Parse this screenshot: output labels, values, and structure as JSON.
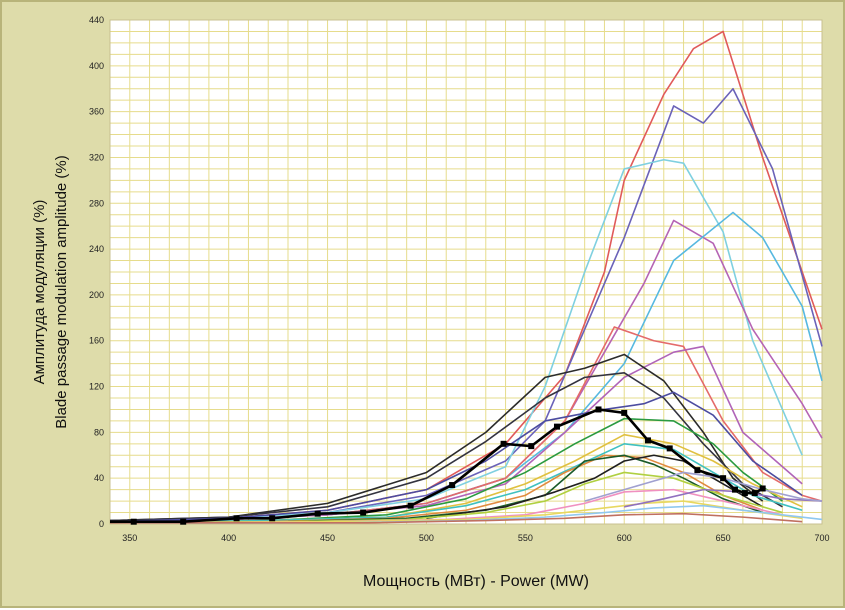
{
  "chart_data": {
    "type": "line",
    "xlabel": "Мощность (МВт) - Power (MW)",
    "ylabel_ru": "Амплитуда модуляции (%)",
    "ylabel_en": "Blade passage modulation amplitude (%)",
    "xlim": [
      340,
      700
    ],
    "ylim": [
      0,
      440
    ],
    "x_ticks": [
      350,
      400,
      450,
      500,
      550,
      600,
      650,
      700
    ],
    "y_ticks": [
      0,
      40,
      80,
      120,
      160,
      200,
      240,
      280,
      320,
      360,
      400,
      440
    ],
    "grid": true,
    "background_color": "#dedcaa",
    "plot_background": "#ffffff",
    "grid_color": "#e6dc8c",
    "highlight_series_color": "#000000",
    "series": [
      {
        "color": "#e05a5a",
        "x": [
          340,
          400,
          450,
          500,
          540,
          570,
          590,
          600,
          620,
          635,
          650,
          670,
          700
        ],
        "y": [
          3,
          5,
          12,
          30,
          70,
          130,
          220,
          300,
          375,
          415,
          430,
          320,
          170
        ]
      },
      {
        "color": "#6a62b8",
        "x": [
          340,
          400,
          450,
          500,
          540,
          560,
          580,
          600,
          625,
          640,
          655,
          675,
          700
        ],
        "y": [
          3,
          5,
          10,
          25,
          55,
          90,
          170,
          250,
          365,
          350,
          380,
          310,
          155
        ]
      },
      {
        "color": "#7fd0e0",
        "x": [
          340,
          400,
          450,
          500,
          540,
          560,
          580,
          600,
          620,
          630,
          650,
          665,
          690
        ],
        "y": [
          3,
          5,
          10,
          22,
          50,
          120,
          220,
          310,
          318,
          315,
          255,
          160,
          60
        ]
      },
      {
        "color": "#b564b4",
        "x": [
          340,
          400,
          450,
          500,
          540,
          570,
          590,
          610,
          625,
          645,
          665,
          690,
          700
        ],
        "y": [
          2,
          4,
          8,
          18,
          40,
          90,
          150,
          210,
          265,
          245,
          170,
          105,
          75
        ]
      },
      {
        "color": "#56b8e0",
        "x": [
          340,
          400,
          450,
          500,
          540,
          570,
          600,
          625,
          655,
          670,
          690,
          700
        ],
        "y": [
          2,
          4,
          8,
          18,
          40,
          80,
          140,
          230,
          272,
          250,
          190,
          125
        ]
      },
      {
        "color": "#e46a6a",
        "x": [
          340,
          400,
          450,
          500,
          540,
          570,
          595,
          615,
          630,
          650,
          670,
          690,
          700
        ],
        "y": [
          2,
          4,
          8,
          18,
          40,
          90,
          172,
          160,
          155,
          90,
          45,
          25,
          20
        ]
      },
      {
        "color": "#b064b8",
        "x": [
          340,
          400,
          450,
          500,
          540,
          570,
          600,
          625,
          640,
          660,
          690
        ],
        "y": [
          2,
          4,
          8,
          16,
          35,
          80,
          128,
          150,
          155,
          80,
          35
        ]
      },
      {
        "color": "#2b2b2b",
        "x": [
          340,
          400,
          450,
          500,
          530,
          560,
          580,
          600,
          620,
          640,
          655,
          670
        ],
        "y": [
          3,
          6,
          18,
          45,
          80,
          128,
          136,
          148,
          125,
          80,
          40,
          20
        ]
      },
      {
        "color": "#333340",
        "x": [
          340,
          400,
          450,
          500,
          530,
          560,
          580,
          600,
          620,
          640,
          660,
          680
        ],
        "y": [
          3,
          6,
          15,
          40,
          72,
          110,
          128,
          132,
          110,
          70,
          35,
          15
        ]
      },
      {
        "color": "#4c4ca0",
        "x": [
          340,
          400,
          450,
          500,
          530,
          560,
          590,
          610,
          625,
          645,
          665,
          690
        ],
        "y": [
          2,
          5,
          12,
          30,
          55,
          90,
          100,
          105,
          115,
          95,
          55,
          25
        ]
      },
      {
        "color": "#2a9a40",
        "x": [
          340,
          420,
          480,
          520,
          550,
          575,
          600,
          625,
          645,
          660,
          680
        ],
        "y": [
          1,
          3,
          8,
          22,
          45,
          70,
          92,
          90,
          70,
          45,
          20
        ]
      },
      {
        "color": "#e0c040",
        "x": [
          340,
          420,
          480,
          520,
          550,
          575,
          600,
          625,
          645,
          665,
          690
        ],
        "y": [
          1,
          3,
          6,
          18,
          35,
          55,
          78,
          70,
          55,
          35,
          15
        ]
      },
      {
        "color": "#40c0c0",
        "x": [
          340,
          420,
          480,
          520,
          550,
          575,
          600,
          625,
          645,
          665,
          690
        ],
        "y": [
          1,
          3,
          6,
          16,
          30,
          50,
          70,
          65,
          45,
          25,
          12
        ]
      },
      {
        "color": "#e08a40",
        "x": [
          340,
          420,
          480,
          520,
          550,
          570,
          590,
          610,
          630,
          650,
          670
        ],
        "y": [
          1,
          2,
          5,
          12,
          25,
          45,
          60,
          58,
          45,
          25,
          12
        ]
      },
      {
        "color": "#1a5a2a",
        "x": [
          340,
          430,
          490,
          530,
          560,
          580,
          600,
          615,
          630,
          650,
          670
        ],
        "y": [
          1,
          2,
          5,
          12,
          25,
          55,
          60,
          52,
          40,
          22,
          10
        ]
      },
      {
        "color": "#202020",
        "x": [
          500,
          540,
          565,
          585,
          600,
          615,
          630,
          650,
          670
        ],
        "y": [
          5,
          15,
          28,
          40,
          55,
          60,
          55,
          35,
          15
        ]
      },
      {
        "color": "#b0d040",
        "x": [
          340,
          430,
          490,
          530,
          560,
          580,
          600,
          625,
          650,
          680
        ],
        "y": [
          1,
          2,
          4,
          10,
          20,
          35,
          45,
          40,
          25,
          10
        ]
      },
      {
        "color": "#f090c0",
        "x": [
          340,
          450,
          510,
          550,
          580,
          600,
          625,
          650,
          680
        ],
        "y": [
          1,
          2,
          4,
          8,
          18,
          28,
          30,
          20,
          8
        ]
      },
      {
        "color": "#e8d860",
        "x": [
          340,
          460,
          520,
          560,
          590,
          610,
          630,
          660,
          690
        ],
        "y": [
          1,
          2,
          4,
          8,
          14,
          18,
          20,
          12,
          5
        ]
      },
      {
        "color": "#90c8f0",
        "x": [
          340,
          460,
          520,
          560,
          590,
          615,
          640,
          670,
          700
        ],
        "y": [
          1,
          1,
          3,
          6,
          10,
          14,
          16,
          10,
          4
        ]
      },
      {
        "color": "#c07060",
        "x": [
          340,
          470,
          530,
          570,
          600,
          630,
          660,
          690
        ],
        "y": [
          1,
          1,
          3,
          5,
          8,
          9,
          6,
          2
        ]
      },
      {
        "color": "#9070c0",
        "x": [
          600,
          620,
          640,
          660,
          680,
          700
        ],
        "y": [
          15,
          22,
          30,
          28,
          22,
          20
        ]
      },
      {
        "color": "#a0a0d0",
        "x": [
          580,
          610,
          630,
          650,
          670,
          690,
          700
        ],
        "y": [
          20,
          35,
          45,
          40,
          30,
          22,
          20
        ]
      }
    ],
    "highlight_series": {
      "color": "#000000",
      "x": [
        340,
        352,
        377,
        404,
        422,
        445,
        468,
        492,
        513,
        539,
        553,
        566,
        587,
        600,
        612,
        623,
        637,
        650,
        656,
        661,
        666,
        670
      ],
      "y": [
        2,
        2,
        2,
        5,
        5,
        9,
        10,
        16,
        34,
        70,
        68,
        85,
        100,
        97,
        73,
        66,
        47,
        40,
        30,
        27,
        27,
        31
      ]
    }
  }
}
